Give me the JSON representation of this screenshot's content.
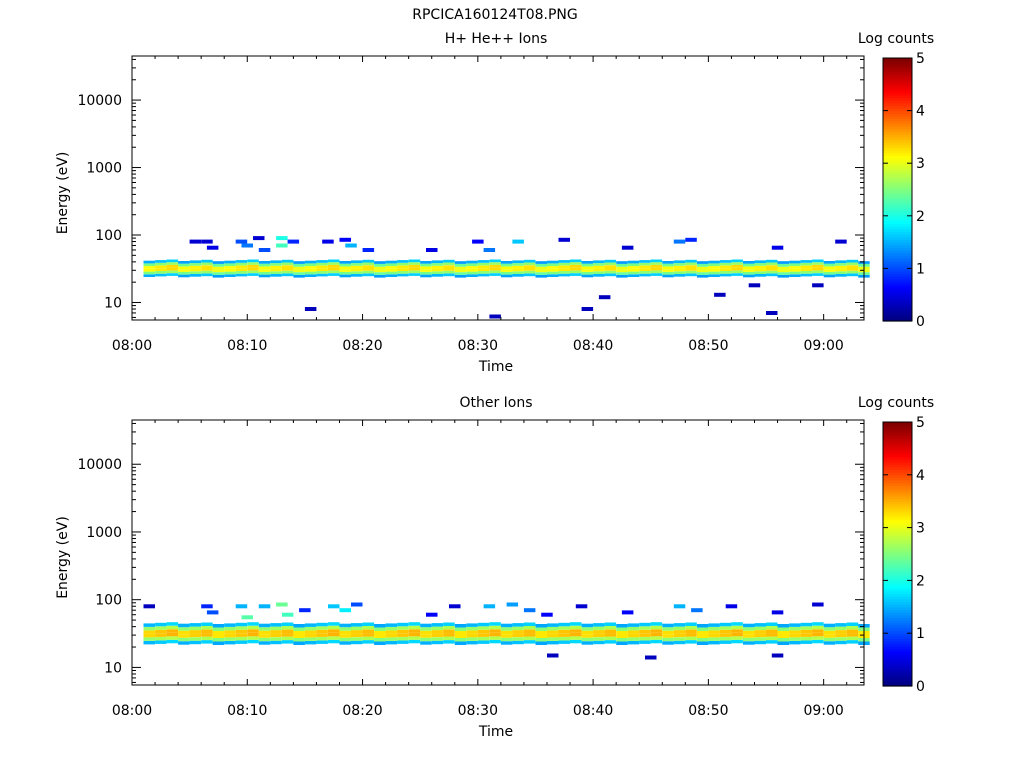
{
  "figure_title": "RPCICA160124T08.PNG",
  "chart_data": [
    {
      "type": "heatmap",
      "title": "H+ He++ Ions",
      "xlabel": "Time",
      "ylabel": "Energy (eV)",
      "x_ticks": [
        "08:00",
        "08:10",
        "08:20",
        "08:30",
        "08:40",
        "08:50",
        "09:00"
      ],
      "x_range_minutes": [
        0,
        63.5
      ],
      "y_scale": "log",
      "y_ticks": [
        "10",
        "100",
        "1000",
        "10000"
      ],
      "ylim": [
        5.5,
        45000
      ],
      "colorbar": {
        "label": "Log counts",
        "ticks": [
          "0",
          "1",
          "2",
          "3",
          "4",
          "5"
        ],
        "range": [
          0,
          5
        ]
      },
      "grid": false,
      "band": {
        "time_start_min": 1.0,
        "time_end_min": 63.5,
        "energy_low_ev": 24,
        "energy_high_ev": 42,
        "peak_log_counts": 3.3
      },
      "points": [
        {
          "t": 5.5,
          "e": 80,
          "c": 0.4
        },
        {
          "t": 6.5,
          "e": 80,
          "c": 0.4
        },
        {
          "t": 7.0,
          "e": 65,
          "c": 0.5
        },
        {
          "t": 9.5,
          "e": 80,
          "c": 1.0
        },
        {
          "t": 10.0,
          "e": 70,
          "c": 1.2
        },
        {
          "t": 11.0,
          "e": 90,
          "c": 0.4
        },
        {
          "t": 11.5,
          "e": 60,
          "c": 1.0
        },
        {
          "t": 13.0,
          "e": 90,
          "c": 2.0
        },
        {
          "t": 13.0,
          "e": 70,
          "c": 2.2
        },
        {
          "t": 14.0,
          "e": 80,
          "c": 0.8
        },
        {
          "t": 17.0,
          "e": 80,
          "c": 0.5
        },
        {
          "t": 18.5,
          "e": 85,
          "c": 0.6
        },
        {
          "t": 19.0,
          "e": 70,
          "c": 1.5
        },
        {
          "t": 20.5,
          "e": 60,
          "c": 0.8
        },
        {
          "t": 26.0,
          "e": 60,
          "c": 0.5
        },
        {
          "t": 30.0,
          "e": 80,
          "c": 0.6
        },
        {
          "t": 31.0,
          "e": 60,
          "c": 1.2
        },
        {
          "t": 33.5,
          "e": 80,
          "c": 1.6
        },
        {
          "t": 37.5,
          "e": 85,
          "c": 0.4
        },
        {
          "t": 43.0,
          "e": 65,
          "c": 0.4
        },
        {
          "t": 47.5,
          "e": 80,
          "c": 1.2
        },
        {
          "t": 48.5,
          "e": 85,
          "c": 0.8
        },
        {
          "t": 56.0,
          "e": 65,
          "c": 0.5
        },
        {
          "t": 61.5,
          "e": 80,
          "c": 0.4
        },
        {
          "t": 15.5,
          "e": 8,
          "c": 0.3
        },
        {
          "t": 31.5,
          "e": 6.2,
          "c": 0.3
        },
        {
          "t": 39.5,
          "e": 8,
          "c": 0.3
        },
        {
          "t": 41.0,
          "e": 12,
          "c": 0.3
        },
        {
          "t": 51.0,
          "e": 13,
          "c": 0.3
        },
        {
          "t": 54.0,
          "e": 18,
          "c": 0.3
        },
        {
          "t": 55.5,
          "e": 7,
          "c": 0.3
        },
        {
          "t": 59.5,
          "e": 18,
          "c": 0.3
        }
      ]
    },
    {
      "type": "heatmap",
      "title": "Other Ions",
      "xlabel": "Time",
      "ylabel": "Energy (eV)",
      "x_ticks": [
        "08:00",
        "08:10",
        "08:20",
        "08:30",
        "08:40",
        "08:50",
        "09:00"
      ],
      "x_range_minutes": [
        0,
        63.5
      ],
      "y_scale": "log",
      "y_ticks": [
        "10",
        "100",
        "1000",
        "10000"
      ],
      "ylim": [
        5.5,
        45000
      ],
      "colorbar": {
        "label": "Log counts",
        "ticks": [
          "0",
          "1",
          "2",
          "3",
          "4",
          "5"
        ],
        "range": [
          0,
          5
        ]
      },
      "grid": false,
      "band": {
        "time_start_min": 1.0,
        "time_end_min": 63.5,
        "energy_low_ev": 22,
        "energy_high_ev": 45,
        "peak_log_counts": 3.5
      },
      "points": [
        {
          "t": 1.5,
          "e": 80,
          "c": 0.3
        },
        {
          "t": 6.5,
          "e": 80,
          "c": 0.8
        },
        {
          "t": 7.0,
          "e": 65,
          "c": 1.0
        },
        {
          "t": 9.5,
          "e": 80,
          "c": 1.5
        },
        {
          "t": 10.0,
          "e": 55,
          "c": 2.3
        },
        {
          "t": 11.5,
          "e": 80,
          "c": 1.5
        },
        {
          "t": 13.0,
          "e": 85,
          "c": 2.4
        },
        {
          "t": 13.5,
          "e": 60,
          "c": 2.2
        },
        {
          "t": 15.0,
          "e": 70,
          "c": 0.8
        },
        {
          "t": 17.5,
          "e": 80,
          "c": 1.6
        },
        {
          "t": 18.5,
          "e": 70,
          "c": 1.8
        },
        {
          "t": 19.5,
          "e": 85,
          "c": 1.0
        },
        {
          "t": 26.0,
          "e": 60,
          "c": 0.6
        },
        {
          "t": 28.0,
          "e": 80,
          "c": 0.4
        },
        {
          "t": 31.0,
          "e": 80,
          "c": 1.5
        },
        {
          "t": 33.0,
          "e": 85,
          "c": 1.4
        },
        {
          "t": 34.5,
          "e": 70,
          "c": 1.2
        },
        {
          "t": 36.0,
          "e": 60,
          "c": 0.6
        },
        {
          "t": 39.0,
          "e": 80,
          "c": 0.4
        },
        {
          "t": 43.0,
          "e": 65,
          "c": 0.6
        },
        {
          "t": 47.5,
          "e": 80,
          "c": 1.5
        },
        {
          "t": 49.0,
          "e": 70,
          "c": 1.2
        },
        {
          "t": 52.0,
          "e": 80,
          "c": 0.5
        },
        {
          "t": 56.0,
          "e": 65,
          "c": 0.5
        },
        {
          "t": 59.5,
          "e": 85,
          "c": 0.4
        },
        {
          "t": 36.5,
          "e": 15,
          "c": 0.3
        },
        {
          "t": 45.0,
          "e": 14,
          "c": 0.3
        },
        {
          "t": 56.0,
          "e": 15,
          "c": 0.3
        }
      ]
    }
  ]
}
